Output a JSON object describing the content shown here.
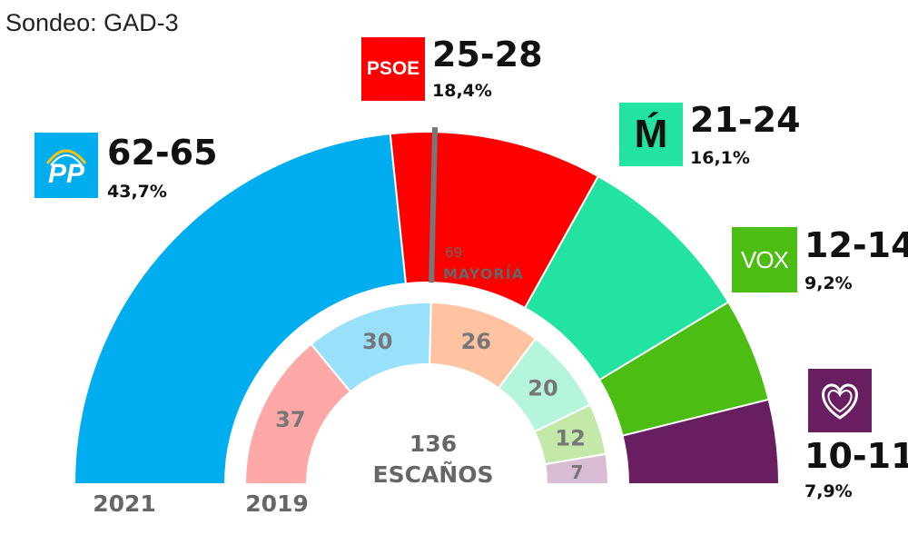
{
  "source": "Sondeo: GAD-3",
  "colors": {
    "PP": "#00adef",
    "PSOE": "#ff0000",
    "Mas Madrid": "#22e3a0",
    "VOX": "#4cbd12",
    "Podemos": "#6a1e62"
  },
  "chart_data": {
    "type": "parliament-semicircle",
    "total_seats": 136,
    "total_label": "136",
    "total_unit": "ESCAÑOS",
    "majority_seats": 69,
    "majority_number": "69",
    "majority_label": "MAYORÍA",
    "outer": {
      "year": "2021",
      "parties": [
        {
          "party": "PP",
          "logo_text": "PP",
          "seats_range": "62-65",
          "seats_mid": 63.5,
          "percent": "43,7%",
          "color": "#00adef",
          "icon": "pp-logo"
        },
        {
          "party": "PSOE",
          "logo_text": "PSOE",
          "seats_range": "25-28",
          "seats_mid": 26.5,
          "percent": "18,4%",
          "color": "#ff0000",
          "icon": "psoe-logo"
        },
        {
          "party": "Mas Madrid",
          "logo_text": "Ḿ",
          "seats_range": "21-24",
          "seats_mid": 22.5,
          "percent": "16,1%",
          "color": "#22e3a0",
          "icon": "mas-madrid-logo"
        },
        {
          "party": "VOX",
          "logo_text": "VOX",
          "seats_range": "12-14",
          "seats_mid": 13,
          "percent": "9,2%",
          "color": "#4cbd12",
          "icon": "vox-logo"
        },
        {
          "party": "Podemos",
          "logo_text": "",
          "seats_range": "10-11",
          "seats_mid": 10.5,
          "percent": "7,9%",
          "color": "#6a1e62",
          "icon": "podemos-heart-logo"
        }
      ]
    },
    "inner": {
      "year": "2019",
      "parties": [
        {
          "party": "PSOE",
          "seats": 37,
          "label": "37",
          "color": "#ffa8a8"
        },
        {
          "party": "PP",
          "seats": 30,
          "label": "30",
          "color": "#99e0fb"
        },
        {
          "party": "Cs",
          "seats": 26,
          "label": "26",
          "color": "#ffc3a2"
        },
        {
          "party": "Mas Madrid",
          "seats": 20,
          "label": "20",
          "color": "#b4f5dc"
        },
        {
          "party": "VOX",
          "seats": 12,
          "label": "12",
          "color": "#c4e8a8"
        },
        {
          "party": "Podemos",
          "seats": 7,
          "label": "7",
          "color": "#d8bcd4"
        }
      ]
    }
  }
}
